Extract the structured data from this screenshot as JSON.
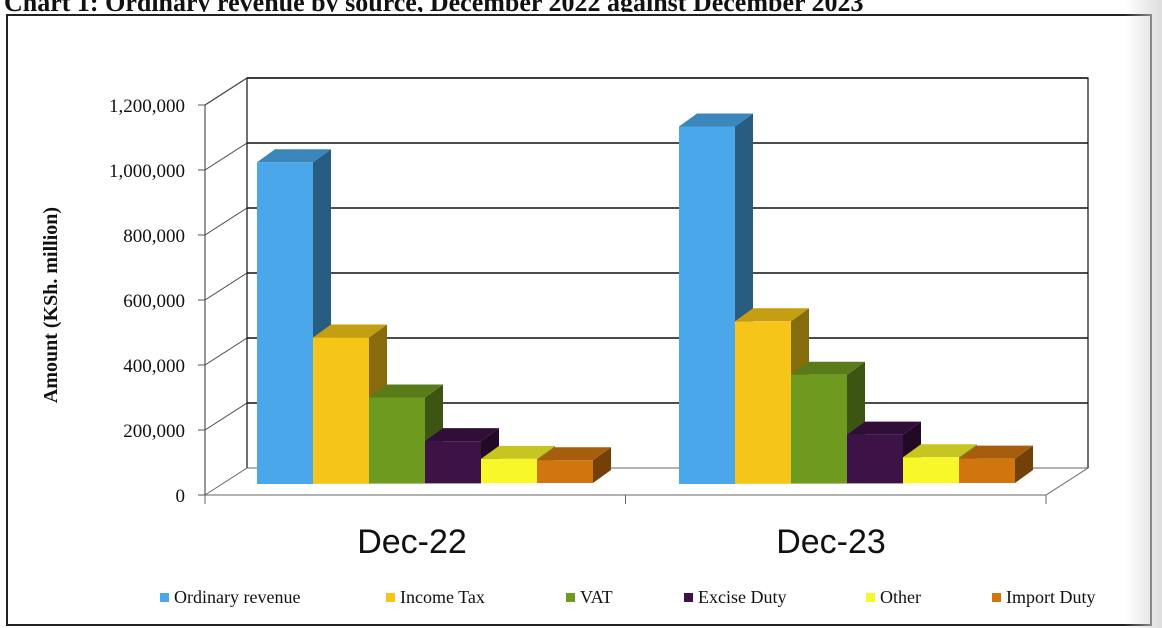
{
  "chart_data": {
    "type": "bar",
    "title": "",
    "ylabel": "Amount  (KSh.  million)",
    "xlabel": "",
    "categories": [
      "Dec-22",
      "Dec-23"
    ],
    "yticks": [
      "0",
      "200,000",
      "400,000",
      "600,000",
      "800,000",
      "1,000,000",
      "1,200,000"
    ],
    "ylim": [
      0,
      1200000
    ],
    "grid": true,
    "legend_position": "bottom",
    "series": [
      {
        "name": "Ordinary revenue",
        "color": "#4aa8ea",
        "values": [
          990000,
          1100000
        ]
      },
      {
        "name": "Income Tax",
        "color": "#f5c518",
        "values": [
          450000,
          500000
        ]
      },
      {
        "name": "VAT",
        "color": "#6f9a20",
        "values": [
          265000,
          335000
        ]
      },
      {
        "name": "Excise Duty",
        "color": "#3d1246",
        "values": [
          130000,
          150000
        ]
      },
      {
        "name": "Other",
        "color": "#f7f72a",
        "values": [
          75000,
          80000
        ]
      },
      {
        "name": "Import Duty",
        "color": "#d1760f",
        "values": [
          70000,
          75000
        ]
      }
    ]
  }
}
